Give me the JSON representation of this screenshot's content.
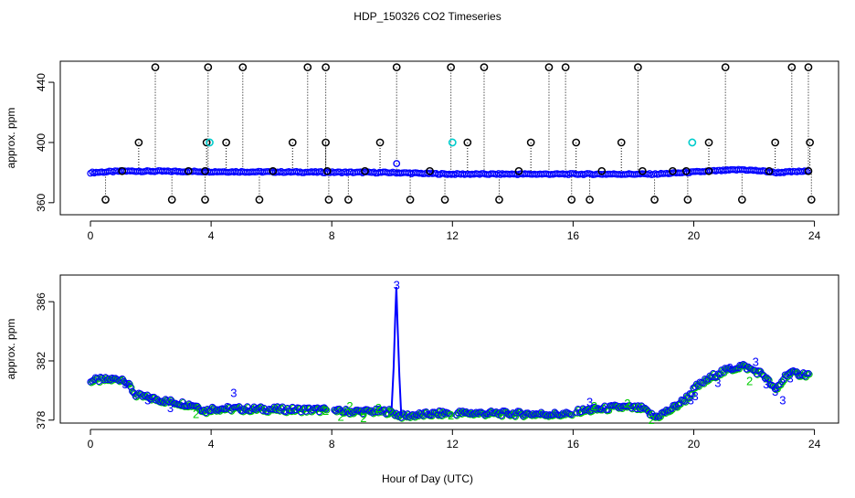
{
  "title": "HDP_150326  CO2 Timeseries",
  "xlabel": "Hour of Day (UTC)",
  "colors": {
    "primary": "#0000ff",
    "secondary": "#00cc00",
    "outlier": "#000000",
    "flag": "#00cccc"
  },
  "chart_data": [
    {
      "type": "scatter",
      "name": "top-panel",
      "ylabel": "approx. ppm",
      "xlim": [
        -1,
        24.8
      ],
      "ylim": [
        352,
        454
      ],
      "xticks": [
        0,
        4,
        8,
        12,
        16,
        20,
        24
      ],
      "yticks": [
        360,
        400,
        440
      ],
      "series": [
        {
          "name": "co2",
          "x_start": 0,
          "x_end": 23.8,
          "baseline": [
            [
              0,
              380
            ],
            [
              1.1,
              381
            ],
            [
              10,
              380
            ],
            [
              11.9,
              379
            ],
            [
              18.7,
              379
            ],
            [
              19.7,
              380
            ],
            [
              20.6,
              381
            ],
            [
              21.6,
              382
            ],
            [
              22.3,
              381
            ],
            [
              22.7,
              380
            ],
            [
              23.8,
              381
            ]
          ]
        },
        {
          "name": "outliers-high",
          "x": [
            2.15,
            3.9,
            5.05,
            7.2,
            7.8,
            10.15,
            11.95,
            13.05,
            15.2,
            15.75,
            18.15,
            21.05,
            23.25,
            23.8
          ],
          "y": [
            450,
            450,
            450,
            450,
            450,
            450,
            450,
            450,
            450,
            450,
            450,
            450,
            450,
            450
          ]
        },
        {
          "name": "outliers-mid",
          "x": [
            1.6,
            3.85,
            4.5,
            6.7,
            7.8,
            9.6,
            12.5,
            14.6,
            16.1,
            17.6,
            20.5,
            22.7,
            23.85
          ],
          "y": [
            400,
            400,
            400,
            400,
            400,
            400,
            400,
            400,
            400,
            400,
            400,
            400,
            400
          ]
        },
        {
          "name": "outliers-low",
          "x": [
            0.5,
            2.7,
            3.8,
            5.6,
            7.9,
            8.55,
            10.6,
            11.75,
            13.55,
            15.95,
            16.55,
            18.7,
            19.8,
            21.6,
            23.9
          ],
          "y": [
            362,
            362,
            362,
            362,
            362,
            362,
            362,
            362,
            362,
            362,
            362,
            362,
            362,
            362,
            362
          ]
        },
        {
          "name": "outliers-near",
          "x": [
            1.05,
            3.25,
            3.8,
            6.05,
            7.85,
            9.1,
            11.25,
            14.2,
            16.95,
            18.3,
            19.3,
            19.75,
            20.5,
            22.5,
            23.8
          ],
          "y": [
            381,
            381,
            381,
            381,
            381,
            381,
            381,
            381,
            381,
            381,
            381,
            381,
            381,
            381,
            381
          ]
        },
        {
          "name": "flags",
          "x": [
            3.95,
            12.0,
            19.95
          ],
          "y": [
            400,
            400,
            400
          ]
        },
        {
          "name": "marker",
          "x": [
            10.15
          ],
          "y": [
            386
          ]
        }
      ]
    },
    {
      "type": "scatter",
      "name": "bottom-panel",
      "ylabel": "approx. ppm",
      "xlim": [
        -1,
        24.8
      ],
      "ylim": [
        377.8,
        387.8
      ],
      "xticks": [
        0,
        4,
        8,
        12,
        16,
        20,
        24
      ],
      "yticks": [
        378,
        382,
        386
      ],
      "series": [
        {
          "name": "co2",
          "x_start": 0,
          "x_end": 23.8,
          "gaps": [
            [
              7.85,
              8.05
            ],
            [
              11.95,
              12.1
            ],
            [
              15.95,
              16.1
            ]
          ],
          "baseline": [
            [
              0,
              380.7
            ],
            [
              1.1,
              380.8
            ],
            [
              1.5,
              379.7
            ],
            [
              2.5,
              379.3
            ],
            [
              3.5,
              379.0
            ],
            [
              3.8,
              378.6
            ],
            [
              4.0,
              378.8
            ],
            [
              7.8,
              378.7
            ],
            [
              8.1,
              378.6
            ],
            [
              9.9,
              378.6
            ],
            [
              10.3,
              378.3
            ],
            [
              11.9,
              378.5
            ],
            [
              12.1,
              378.5
            ],
            [
              15.9,
              378.4
            ],
            [
              16.1,
              378.6
            ],
            [
              17.5,
              378.9
            ],
            [
              18.3,
              378.8
            ],
            [
              18.7,
              378.2
            ],
            [
              19.2,
              378.7
            ],
            [
              19.7,
              379.4
            ],
            [
              20.1,
              380.3
            ],
            [
              20.8,
              381.2
            ],
            [
              21.6,
              381.7
            ],
            [
              22.3,
              381.1
            ],
            [
              22.7,
              380.0
            ],
            [
              23.1,
              381.2
            ],
            [
              23.8,
              381.1
            ]
          ]
        },
        {
          "name": "labels-3",
          "x": [
            1.15,
            1.9,
            2.65,
            4.75,
            10.15,
            16.55,
            19.9,
            20.05,
            20.8,
            21.2,
            22.05,
            22.4,
            22.7,
            22.95,
            23.2
          ],
          "y": [
            380.4,
            379.3,
            378.8,
            379.8,
            387.1,
            379.2,
            379.3,
            379.6,
            380.5,
            381.5,
            381.9,
            380.4,
            379.9,
            379.3,
            380.8
          ]
        },
        {
          "name": "labels-2",
          "x": [
            3.5,
            7.8,
            8.3,
            8.6,
            9.05,
            9.55,
            9.95,
            11.95,
            16.7,
            17.8,
            18.6,
            21.85
          ],
          "y": [
            378.4,
            378.6,
            378.2,
            378.9,
            378.1,
            378.8,
            378.5,
            378.3,
            378.9,
            379.1,
            378.0,
            380.6
          ]
        }
      ],
      "spike": {
        "x": [
          9.98,
          10.05,
          10.1,
          10.14,
          10.18,
          10.24,
          10.3
        ],
        "y": [
          378.6,
          381.5,
          384.8,
          387.0,
          384.5,
          381.0,
          378.4
        ]
      }
    }
  ]
}
